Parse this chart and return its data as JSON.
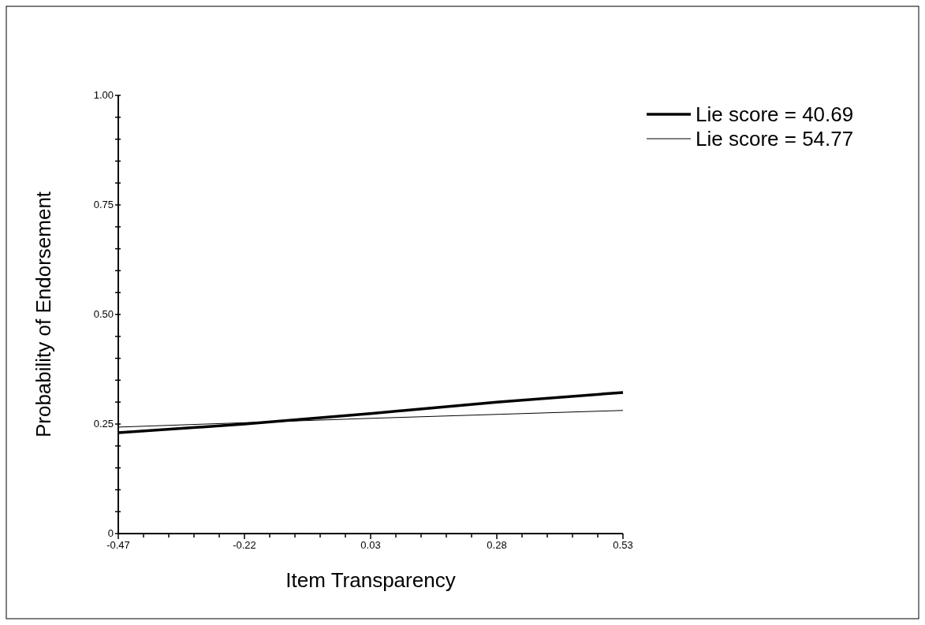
{
  "chart_data": {
    "type": "line",
    "xlabel": "Item Transparency",
    "ylabel": "Probability of Endorsement",
    "xlim": [
      -0.47,
      0.53
    ],
    "xticks": [
      -0.47,
      {
        "value": -0.42,
        "label": null
      },
      {
        "value": -0.37,
        "label": null
      },
      {
        "value": -0.32,
        "label": null
      },
      {
        "value": -0.27,
        "label": null
      },
      -0.22,
      {
        "value": -0.17,
        "label": null
      },
      {
        "value": -0.12,
        "label": null
      },
      {
        "value": -0.07,
        "label": null
      },
      {
        "value": -0.02,
        "label": null
      },
      0.03,
      {
        "value": 0.08,
        "label": null
      },
      {
        "value": 0.13,
        "label": null
      },
      {
        "value": 0.18,
        "label": null
      },
      {
        "value": 0.23,
        "label": null
      },
      0.28,
      {
        "value": 0.33,
        "label": null
      },
      {
        "value": 0.38,
        "label": null
      },
      {
        "value": 0.43,
        "label": null
      },
      {
        "value": 0.48,
        "label": null
      },
      0.53
    ],
    "ylim": [
      0,
      1
    ],
    "yticks": [
      0,
      {
        "value": 0.05,
        "label": null
      },
      {
        "value": 0.1,
        "label": null
      },
      {
        "value": 0.15,
        "label": null
      },
      {
        "value": 0.2,
        "label": null
      },
      0.25,
      {
        "value": 0.3,
        "label": null
      },
      {
        "value": 0.35,
        "label": null
      },
      {
        "value": 0.4,
        "label": null
      },
      {
        "value": 0.45,
        "label": null
      },
      {
        "value": 0.5,
        "label": "0.50"
      },
      {
        "value": 0.55,
        "label": null
      },
      {
        "value": 0.6,
        "label": null
      },
      {
        "value": 0.65,
        "label": null
      },
      {
        "value": 0.7,
        "label": null
      },
      {
        "value": 0.75,
        "label": "0.75"
      },
      {
        "value": 0.8,
        "label": null
      },
      {
        "value": 0.85,
        "label": null
      },
      {
        "value": 0.9,
        "label": null
      },
      {
        "value": 0.95,
        "label": null
      },
      {
        "value": 1,
        "label": "1.00"
      }
    ],
    "x": [
      -0.47,
      -0.22,
      0.03,
      0.28,
      0.53
    ],
    "series": [
      {
        "name": "Lie score = 40.69",
        "color": "#000000",
        "values": [
          0.23,
          0.25,
          0.274,
          0.3,
          0.322
        ]
      },
      {
        "name": "Lie score = 54.77",
        "color": "#000000",
        "values": [
          0.243,
          0.253,
          0.263,
          0.272,
          0.281
        ]
      }
    ],
    "legend": "top right",
    "grid": false,
    "marker": "none",
    "line_style": "solid"
  }
}
